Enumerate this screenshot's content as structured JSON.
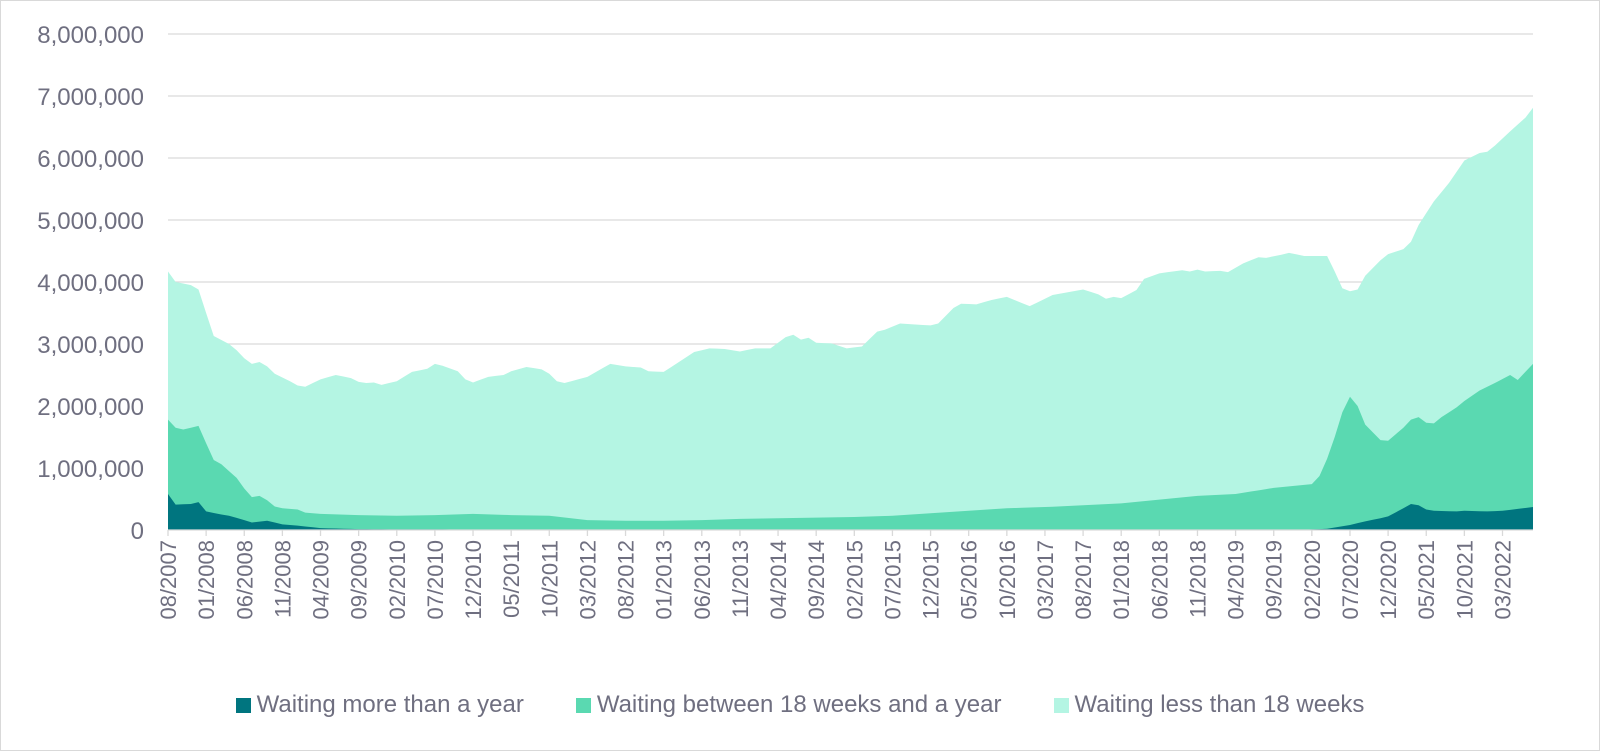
{
  "chart_data": {
    "type": "area",
    "stacked": true,
    "title": "",
    "xlabel": "",
    "ylabel": "",
    "ylim": [
      0,
      8000000
    ],
    "y_ticks": [
      {
        "value": 0,
        "label": "0"
      },
      {
        "value": 1000000,
        "label": "1,000,000"
      },
      {
        "value": 2000000,
        "label": "2,000,000"
      },
      {
        "value": 3000000,
        "label": "3,000,000"
      },
      {
        "value": 4000000,
        "label": "4,000,000"
      },
      {
        "value": 5000000,
        "label": "5,000,000"
      },
      {
        "value": 6000000,
        "label": "6,000,000"
      },
      {
        "value": 7000000,
        "label": "7,000,000"
      },
      {
        "value": 8000000,
        "label": "8,000,000"
      }
    ],
    "x_range": [
      "08/2007",
      "07/2022"
    ],
    "x_ticks": [
      "08/2007",
      "01/2008",
      "06/2008",
      "11/2008",
      "04/2009",
      "09/2009",
      "02/2010",
      "07/2010",
      "12/2010",
      "05/2011",
      "10/2011",
      "03/2012",
      "08/2012",
      "01/2013",
      "06/2013",
      "11/2013",
      "04/2014",
      "09/2014",
      "02/2015",
      "07/2015",
      "12/2015",
      "05/2016",
      "10/2016",
      "03/2017",
      "08/2017",
      "01/2018",
      "06/2018",
      "11/2018",
      "04/2019",
      "09/2019",
      "02/2020",
      "07/2020",
      "12/2020",
      "05/2021",
      "10/2021",
      "03/2022"
    ],
    "grid": true,
    "legend_position": "bottom",
    "series": [
      {
        "name": "Waiting more than a year",
        "color": "#00757f",
        "points": [
          [
            "08/2007",
            580000
          ],
          [
            "09/2007",
            410000
          ],
          [
            "11/2007",
            420000
          ],
          [
            "12/2007",
            450000
          ],
          [
            "01/2008",
            300000
          ],
          [
            "03/2008",
            250000
          ],
          [
            "04/2008",
            230000
          ],
          [
            "06/2008",
            160000
          ],
          [
            "07/2008",
            120000
          ],
          [
            "09/2008",
            150000
          ],
          [
            "11/2008",
            90000
          ],
          [
            "01/2009",
            70000
          ],
          [
            "04/2009",
            30000
          ],
          [
            "09/2009",
            15000
          ],
          [
            "02/2010",
            10000
          ],
          [
            "01/2013",
            5000
          ],
          [
            "01/2020",
            5000
          ],
          [
            "04/2020",
            20000
          ],
          [
            "07/2020",
            80000
          ],
          [
            "09/2020",
            140000
          ],
          [
            "11/2020",
            190000
          ],
          [
            "12/2020",
            220000
          ],
          [
            "02/2021",
            350000
          ],
          [
            "03/2021",
            420000
          ],
          [
            "04/2021",
            400000
          ],
          [
            "05/2021",
            330000
          ],
          [
            "06/2021",
            310000
          ],
          [
            "09/2021",
            300000
          ],
          [
            "10/2021",
            310000
          ],
          [
            "01/2022",
            300000
          ],
          [
            "03/2022",
            310000
          ],
          [
            "05/2022",
            340000
          ],
          [
            "07/2022",
            370000
          ]
        ]
      },
      {
        "name": "Waiting between 18 weeks and a year",
        "color": "#5ad9b1",
        "points": [
          [
            "08/2007",
            1780000
          ],
          [
            "09/2007",
            1650000
          ],
          [
            "10/2007",
            1620000
          ],
          [
            "12/2007",
            1680000
          ],
          [
            "01/2008",
            1400000
          ],
          [
            "02/2008",
            1130000
          ],
          [
            "03/2008",
            1060000
          ],
          [
            "05/2008",
            840000
          ],
          [
            "06/2008",
            670000
          ],
          [
            "07/2008",
            530000
          ],
          [
            "08/2008",
            550000
          ],
          [
            "09/2008",
            480000
          ],
          [
            "10/2008",
            380000
          ],
          [
            "11/2008",
            350000
          ],
          [
            "01/2009",
            330000
          ],
          [
            "02/2009",
            280000
          ],
          [
            "04/2009",
            260000
          ],
          [
            "09/2009",
            240000
          ],
          [
            "02/2010",
            230000
          ],
          [
            "07/2010",
            240000
          ],
          [
            "12/2010",
            260000
          ],
          [
            "05/2011",
            240000
          ],
          [
            "10/2011",
            230000
          ],
          [
            "03/2012",
            160000
          ],
          [
            "08/2012",
            150000
          ],
          [
            "01/2013",
            150000
          ],
          [
            "06/2013",
            160000
          ],
          [
            "11/2013",
            180000
          ],
          [
            "04/2014",
            190000
          ],
          [
            "09/2014",
            200000
          ],
          [
            "02/2015",
            210000
          ],
          [
            "07/2015",
            230000
          ],
          [
            "12/2015",
            270000
          ],
          [
            "05/2016",
            310000
          ],
          [
            "10/2016",
            350000
          ],
          [
            "03/2017",
            370000
          ],
          [
            "08/2017",
            400000
          ],
          [
            "01/2018",
            430000
          ],
          [
            "06/2018",
            490000
          ],
          [
            "11/2018",
            550000
          ],
          [
            "04/2019",
            580000
          ],
          [
            "09/2019",
            680000
          ],
          [
            "02/2020",
            740000
          ],
          [
            "03/2020",
            870000
          ],
          [
            "04/2020",
            1150000
          ],
          [
            "05/2020",
            1500000
          ],
          [
            "06/2020",
            1900000
          ],
          [
            "07/2020",
            2150000
          ],
          [
            "08/2020",
            2000000
          ],
          [
            "09/2020",
            1700000
          ],
          [
            "11/2020",
            1450000
          ],
          [
            "12/2020",
            1440000
          ],
          [
            "02/2021",
            1650000
          ],
          [
            "03/2021",
            1780000
          ],
          [
            "04/2021",
            1820000
          ],
          [
            "05/2021",
            1730000
          ],
          [
            "06/2021",
            1720000
          ],
          [
            "07/2021",
            1820000
          ],
          [
            "09/2021",
            1980000
          ],
          [
            "10/2021",
            2080000
          ],
          [
            "12/2021",
            2250000
          ],
          [
            "02/2022",
            2370000
          ],
          [
            "04/2022",
            2500000
          ],
          [
            "05/2022",
            2420000
          ],
          [
            "07/2022",
            2680000
          ]
        ]
      },
      {
        "name": "Waiting less than 18 weeks",
        "color": "#b4f5e3",
        "points": [
          [
            "08/2007",
            4170000
          ],
          [
            "09/2007",
            4000000
          ],
          [
            "11/2007",
            3950000
          ],
          [
            "12/2007",
            3880000
          ],
          [
            "01/2008",
            3500000
          ],
          [
            "02/2008",
            3130000
          ],
          [
            "04/2008",
            3000000
          ],
          [
            "05/2008",
            2900000
          ],
          [
            "06/2008",
            2770000
          ],
          [
            "07/2008",
            2680000
          ],
          [
            "08/2008",
            2710000
          ],
          [
            "09/2008",
            2640000
          ],
          [
            "10/2008",
            2520000
          ],
          [
            "12/2008",
            2400000
          ],
          [
            "01/2009",
            2330000
          ],
          [
            "02/2009",
            2310000
          ],
          [
            "04/2009",
            2430000
          ],
          [
            "06/2009",
            2500000
          ],
          [
            "08/2009",
            2450000
          ],
          [
            "09/2009",
            2390000
          ],
          [
            "10/2009",
            2370000
          ],
          [
            "11/2009",
            2380000
          ],
          [
            "12/2009",
            2340000
          ],
          [
            "02/2010",
            2400000
          ],
          [
            "04/2010",
            2550000
          ],
          [
            "06/2010",
            2600000
          ],
          [
            "07/2010",
            2680000
          ],
          [
            "08/2010",
            2650000
          ],
          [
            "10/2010",
            2560000
          ],
          [
            "11/2010",
            2430000
          ],
          [
            "12/2010",
            2380000
          ],
          [
            "02/2011",
            2470000
          ],
          [
            "04/2011",
            2500000
          ],
          [
            "05/2011",
            2560000
          ],
          [
            "07/2011",
            2630000
          ],
          [
            "09/2011",
            2590000
          ],
          [
            "10/2011",
            2520000
          ],
          [
            "11/2011",
            2400000
          ],
          [
            "12/2011",
            2370000
          ],
          [
            "03/2012",
            2470000
          ],
          [
            "06/2012",
            2680000
          ],
          [
            "08/2012",
            2640000
          ],
          [
            "10/2012",
            2620000
          ],
          [
            "11/2012",
            2560000
          ],
          [
            "01/2013",
            2550000
          ],
          [
            "03/2013",
            2710000
          ],
          [
            "05/2013",
            2870000
          ],
          [
            "07/2013",
            2930000
          ],
          [
            "09/2013",
            2920000
          ],
          [
            "11/2013",
            2880000
          ],
          [
            "01/2014",
            2930000
          ],
          [
            "03/2014",
            2930000
          ],
          [
            "05/2014",
            3110000
          ],
          [
            "06/2014",
            3150000
          ],
          [
            "07/2014",
            3070000
          ],
          [
            "08/2014",
            3100000
          ],
          [
            "09/2014",
            3020000
          ],
          [
            "11/2014",
            3010000
          ],
          [
            "01/2015",
            2930000
          ],
          [
            "03/2015",
            2960000
          ],
          [
            "05/2015",
            3200000
          ],
          [
            "06/2015",
            3230000
          ],
          [
            "08/2015",
            3330000
          ],
          [
            "12/2015",
            3300000
          ],
          [
            "01/2016",
            3330000
          ],
          [
            "03/2016",
            3580000
          ],
          [
            "04/2016",
            3650000
          ],
          [
            "06/2016",
            3640000
          ],
          [
            "08/2016",
            3710000
          ],
          [
            "10/2016",
            3760000
          ],
          [
            "01/2017",
            3610000
          ],
          [
            "04/2017",
            3790000
          ],
          [
            "08/2017",
            3880000
          ],
          [
            "10/2017",
            3800000
          ],
          [
            "11/2017",
            3730000
          ],
          [
            "12/2017",
            3760000
          ],
          [
            "01/2018",
            3740000
          ],
          [
            "03/2018",
            3870000
          ],
          [
            "04/2018",
            4050000
          ],
          [
            "06/2018",
            4140000
          ],
          [
            "09/2018",
            4190000
          ],
          [
            "10/2018",
            4170000
          ],
          [
            "11/2018",
            4200000
          ],
          [
            "12/2018",
            4170000
          ],
          [
            "02/2019",
            4180000
          ],
          [
            "03/2019",
            4160000
          ],
          [
            "05/2019",
            4300000
          ],
          [
            "07/2019",
            4400000
          ],
          [
            "08/2019",
            4390000
          ],
          [
            "10/2019",
            4440000
          ],
          [
            "11/2019",
            4470000
          ],
          [
            "01/2020",
            4420000
          ],
          [
            "04/2020",
            4420000
          ],
          [
            "05/2020",
            4170000
          ],
          [
            "06/2020",
            3900000
          ],
          [
            "07/2020",
            3850000
          ],
          [
            "08/2020",
            3880000
          ],
          [
            "09/2020",
            4100000
          ],
          [
            "11/2020",
            4350000
          ],
          [
            "12/2020",
            4450000
          ],
          [
            "02/2021",
            4530000
          ],
          [
            "03/2021",
            4650000
          ],
          [
            "04/2021",
            4920000
          ],
          [
            "06/2021",
            5300000
          ],
          [
            "08/2021",
            5600000
          ],
          [
            "10/2021",
            5960000
          ],
          [
            "12/2021",
            6080000
          ],
          [
            "01/2022",
            6100000
          ],
          [
            "02/2022",
            6200000
          ],
          [
            "04/2022",
            6430000
          ],
          [
            "06/2022",
            6650000
          ],
          [
            "07/2022",
            6810000
          ]
        ]
      }
    ]
  }
}
